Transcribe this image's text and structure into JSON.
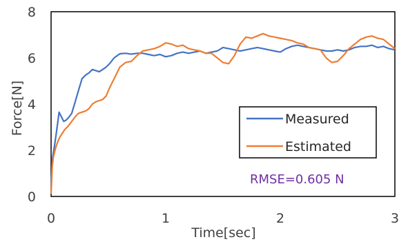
{
  "chart_data": {
    "type": "line",
    "title": "",
    "xlabel": "Time[sec]",
    "ylabel": "Force[N]",
    "xlim": [
      0,
      3
    ],
    "ylim": [
      0,
      8
    ],
    "x_ticks": [
      "0",
      "1",
      "2",
      "3"
    ],
    "y_ticks": [
      "0",
      "2",
      "4",
      "6",
      "8"
    ],
    "grid": false,
    "legend_position": "lower-right",
    "annotation": "RMSE=0.605 N",
    "annotation_color": "#7030A0",
    "series": [
      {
        "name": "Measured",
        "color": "#4472C4",
        "x": [
          0,
          0.01,
          0.03,
          0.05,
          0.07,
          0.09,
          0.11,
          0.13,
          0.15,
          0.18,
          0.21,
          0.24,
          0.27,
          0.3,
          0.33,
          0.36,
          0.39,
          0.42,
          0.45,
          0.48,
          0.51,
          0.55,
          0.6,
          0.65,
          0.7,
          0.75,
          0.8,
          0.85,
          0.9,
          0.95,
          1.0,
          1.05,
          1.1,
          1.15,
          1.2,
          1.25,
          1.3,
          1.35,
          1.4,
          1.45,
          1.5,
          1.55,
          1.6,
          1.65,
          1.7,
          1.75,
          1.8,
          1.85,
          1.9,
          1.95,
          2.0,
          2.05,
          2.1,
          2.15,
          2.2,
          2.25,
          2.3,
          2.35,
          2.4,
          2.45,
          2.5,
          2.55,
          2.6,
          2.65,
          2.7,
          2.75,
          2.8,
          2.85,
          2.9,
          2.95,
          3.0
        ],
        "values": [
          0.3,
          1.6,
          2.2,
          2.9,
          3.65,
          3.45,
          3.25,
          3.3,
          3.4,
          3.6,
          4.1,
          4.6,
          5.1,
          5.25,
          5.35,
          5.5,
          5.45,
          5.4,
          5.5,
          5.6,
          5.75,
          6.0,
          6.18,
          6.2,
          6.16,
          6.2,
          6.2,
          6.15,
          6.1,
          6.15,
          6.05,
          6.1,
          6.2,
          6.25,
          6.2,
          6.25,
          6.3,
          6.2,
          6.25,
          6.3,
          6.45,
          6.4,
          6.35,
          6.3,
          6.35,
          6.4,
          6.45,
          6.4,
          6.35,
          6.3,
          6.25,
          6.4,
          6.5,
          6.55,
          6.5,
          6.45,
          6.4,
          6.35,
          6.3,
          6.3,
          6.35,
          6.3,
          6.35,
          6.45,
          6.5,
          6.5,
          6.55,
          6.45,
          6.5,
          6.4,
          6.35
        ]
      },
      {
        "name": "Estimated",
        "color": "#ED7D31",
        "x": [
          0,
          0.01,
          0.02,
          0.04,
          0.06,
          0.08,
          0.1,
          0.12,
          0.15,
          0.18,
          0.21,
          0.24,
          0.27,
          0.3,
          0.33,
          0.36,
          0.39,
          0.42,
          0.45,
          0.48,
          0.51,
          0.55,
          0.6,
          0.65,
          0.7,
          0.75,
          0.8,
          0.85,
          0.9,
          0.95,
          1.0,
          1.05,
          1.1,
          1.15,
          1.2,
          1.25,
          1.3,
          1.35,
          1.4,
          1.45,
          1.5,
          1.55,
          1.6,
          1.65,
          1.7,
          1.75,
          1.8,
          1.85,
          1.9,
          1.95,
          2.0,
          2.05,
          2.1,
          2.15,
          2.2,
          2.25,
          2.3,
          2.35,
          2.4,
          2.45,
          2.5,
          2.55,
          2.6,
          2.65,
          2.7,
          2.75,
          2.8,
          2.85,
          2.9,
          2.95,
          3.0
        ],
        "values": [
          0.1,
          1.3,
          1.7,
          2.1,
          2.4,
          2.6,
          2.75,
          2.9,
          3.05,
          3.25,
          3.45,
          3.6,
          3.65,
          3.7,
          3.8,
          4.0,
          4.1,
          4.15,
          4.2,
          4.35,
          4.7,
          5.1,
          5.6,
          5.8,
          5.85,
          6.1,
          6.3,
          6.35,
          6.4,
          6.5,
          6.65,
          6.6,
          6.5,
          6.55,
          6.4,
          6.35,
          6.3,
          6.2,
          6.2,
          6.0,
          5.8,
          5.75,
          6.1,
          6.6,
          6.9,
          6.85,
          6.95,
          7.05,
          6.95,
          6.9,
          6.85,
          6.8,
          6.75,
          6.65,
          6.6,
          6.45,
          6.4,
          6.35,
          6.0,
          5.8,
          5.85,
          6.1,
          6.4,
          6.6,
          6.8,
          6.9,
          6.95,
          6.85,
          6.8,
          6.6,
          6.4
        ]
      }
    ]
  }
}
